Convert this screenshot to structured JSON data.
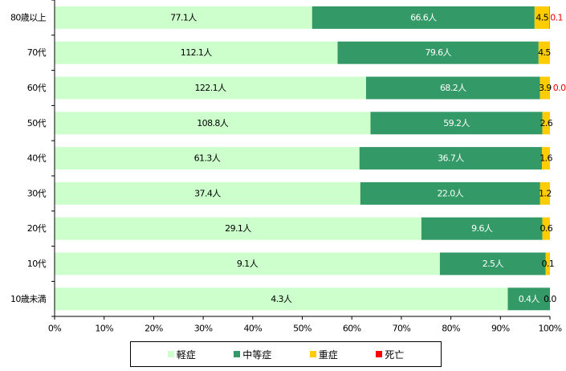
{
  "chart_data": {
    "type": "bar",
    "orientation": "horizontal",
    "stacked": true,
    "normalized": true,
    "categories": [
      "80歳以上",
      "70代",
      "60代",
      "50代",
      "40代",
      "30代",
      "20代",
      "10代",
      "10歳未満"
    ],
    "series": [
      {
        "name": "軽症",
        "color": "#ccffcc",
        "values": [
          77.1,
          112.1,
          122.1,
          108.8,
          61.3,
          37.4,
          29.1,
          9.1,
          4.3
        ],
        "labels": [
          "77.1人",
          "112.1人",
          "122.1人",
          "108.8人",
          "61.3人",
          "37.4人",
          "29.1人",
          "9.1人",
          "4.3人"
        ]
      },
      {
        "name": "中等症",
        "color": "#339966",
        "values": [
          66.6,
          79.6,
          68.2,
          59.2,
          36.7,
          22.0,
          9.6,
          2.5,
          0.4
        ],
        "labels": [
          "66.6人",
          "79.6人",
          "68.2人",
          "59.2人",
          "36.7人",
          "22.0人",
          "9.6人",
          "2.5人",
          "0.4人"
        ]
      },
      {
        "name": "重症",
        "color": "#ffcc00",
        "values": [
          4.5,
          4.5,
          3.9,
          2.6,
          1.6,
          1.2,
          0.6,
          0.1,
          0.0
        ],
        "labels": [
          "4.5",
          "4.5",
          "3.9",
          "2.6",
          "1.6",
          "1.2",
          "0.6",
          "0.1",
          "0.0"
        ]
      },
      {
        "name": "死亡",
        "color": "#ff0000",
        "values": [
          0.1,
          0.0,
          0.0,
          0.0,
          0.0,
          0.0,
          0.0,
          0.0,
          0.0
        ],
        "labels": [
          "0.1",
          "",
          "0.0",
          "",
          "",
          "",
          "",
          "",
          ""
        ]
      }
    ],
    "x_ticks": [
      "0%",
      "10%",
      "20%",
      "30%",
      "40%",
      "50%",
      "60%",
      "70%",
      "80%",
      "90%",
      "100%"
    ],
    "xlim": [
      0,
      100
    ],
    "legend_position": "bottom",
    "grid": false
  }
}
